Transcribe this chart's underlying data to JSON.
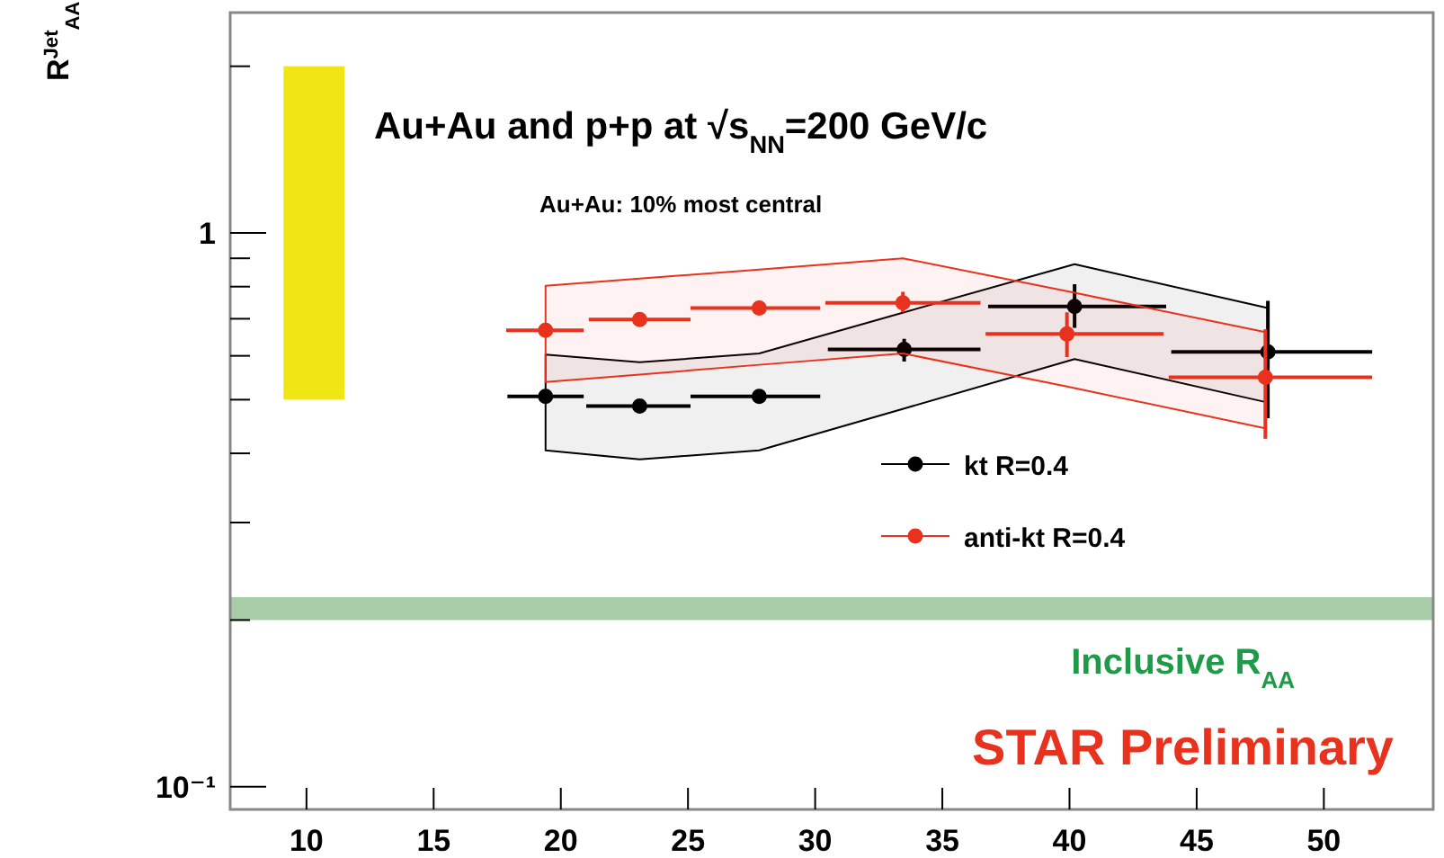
{
  "chart_data": {
    "type": "scatter",
    "title": "Au+Au and p+p at √s$_{NN}$=200 GeV/c",
    "ylabel": "R$^{Jet}$$_{AA}$",
    "annotations": [
      "Au+Au: 10% most central",
      "STAR Preliminary"
    ],
    "log": "y",
    "xlim": [
      7,
      54.3
    ],
    "ylim": [
      0.091,
      2.5
    ],
    "xticks": [
      10,
      15,
      20,
      25,
      30,
      35,
      40,
      45,
      50
    ],
    "yticks": [
      {
        "value": 0.1,
        "label": "10⁻¹"
      },
      {
        "value": 0.2,
        "label": null
      },
      {
        "value": 0.3,
        "label": null
      },
      {
        "value": 0.4,
        "label": null
      },
      {
        "value": 0.5,
        "label": null
      },
      {
        "value": 0.6,
        "label": null
      },
      {
        "value": 0.7,
        "label": null
      },
      {
        "value": 0.8,
        "label": null
      },
      {
        "value": 0.9,
        "label": null
      },
      1,
      {
        "value": 2,
        "label": null
      }
    ],
    "grid": false,
    "legend": "right",
    "marker": "circle",
    "bands": [
      {
        "axis": "y",
        "from": 0.2,
        "to": 0.22,
        "label": "Inclusive R$_{AA}$",
        "color": "#a8cba8"
      }
    ],
    "series": [
      {
        "type": "bar",
        "color": "#f0e614",
        "x": [
          10.3
        ],
        "base": [
          0.5
        ],
        "values": [
          1.5
        ]
      },
      {
        "name": "kt R=0.4",
        "color": "#000000",
        "x": [
          19.4,
          23.1,
          27.8,
          33.5,
          40.2,
          47.8
        ],
        "values": [
          0.507,
          0.487,
          0.507,
          0.616,
          0.737,
          0.61
        ],
        "errors": [
          null,
          null,
          null,
          [
            0.586,
            0.644
          ],
          [
            0.674,
            0.808
          ],
          [
            0.463,
            0.754
          ]
        ],
        "xerrors": [
          [
            17.9,
            20.9
          ],
          [
            21.0,
            25.1
          ],
          [
            25.1,
            30.2
          ],
          [
            30.5,
            36.5
          ],
          [
            36.8,
            43.8
          ],
          [
            44.0,
            51.9
          ]
        ],
        "lower": [
          0.405,
          0.39,
          0.405,
          0.482,
          0.592,
          0.494
        ],
        "upper": [
          0.603,
          0.584,
          0.606,
          0.719,
          0.878,
          0.732
        ]
      },
      {
        "name": "anti-kt R=0.4",
        "color": "#e8321e",
        "x": [
          19.4,
          23.1,
          27.8,
          33.45,
          39.9,
          47.7
        ],
        "values": [
          0.667,
          0.698,
          0.732,
          0.748,
          0.657,
          0.549
        ],
        "errors": [
          null,
          null,
          null,
          [
            0.719,
            0.783
          ],
          [
            0.597,
            0.719
          ],
          [
            0.425,
            0.67
          ]
        ],
        "xerrors": [
          [
            17.85,
            20.9
          ],
          [
            21.1,
            25.1
          ],
          [
            25.1,
            30.2
          ],
          [
            30.4,
            36.5
          ],
          [
            36.7,
            43.7
          ],
          [
            43.9,
            51.9
          ]
        ],
        "lower": [
          0.538,
          0.555,
          0.578,
          0.606,
          0.528,
          0.444
        ],
        "upper": [
          0.803,
          0.827,
          0.859,
          0.9,
          0.785,
          0.662
        ]
      }
    ]
  }
}
